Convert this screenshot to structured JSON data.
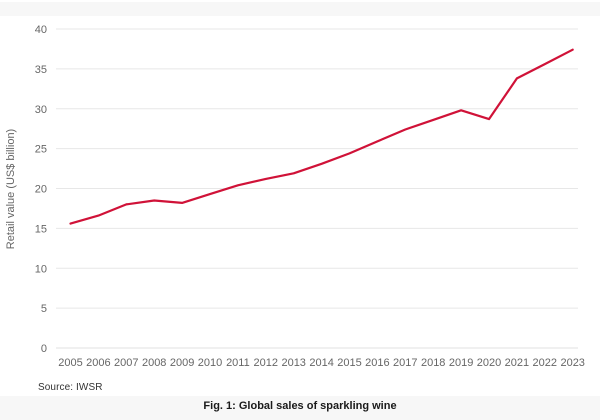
{
  "figure": {
    "source_note": "Source: IWSR",
    "caption": "Fig. 1: Global sales of sparkling wine"
  },
  "colors": {
    "line": "#d01238",
    "grid": "#e7e7e7",
    "zero_line": "#e0e0e0",
    "axis_label": "#666666",
    "band_bg": "#f7f7f7",
    "caption_text": "#1a1a1a",
    "source_text": "#333333"
  },
  "chart_data": {
    "type": "line",
    "title": "",
    "xlabel": "",
    "ylabel": "Retail value (US$ billion)",
    "categories": [
      "2005",
      "2006",
      "2007",
      "2008",
      "2009",
      "2010",
      "2011",
      "2012",
      "2013",
      "2014",
      "2015",
      "2016",
      "2017",
      "2018",
      "2019",
      "2020",
      "2021",
      "2022",
      "2023"
    ],
    "series": [
      {
        "name": "Global sparkling wine retail value (US$ billion)",
        "values": [
          15.6,
          16.6,
          18.0,
          18.5,
          18.2,
          19.3,
          20.4,
          21.2,
          21.9,
          23.1,
          24.4,
          25.9,
          27.4,
          28.6,
          29.8,
          28.7,
          33.8,
          35.6,
          37.4
        ]
      }
    ],
    "ylim": [
      0,
      40
    ],
    "yticks": [
      0,
      5,
      10,
      15,
      20,
      25,
      30,
      35,
      40
    ],
    "grid": true,
    "legend": false,
    "markers": false
  }
}
